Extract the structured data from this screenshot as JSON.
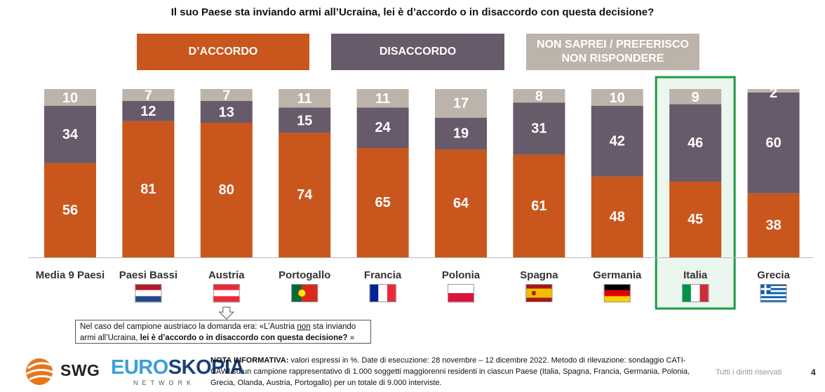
{
  "chart_data": {
    "type": "bar",
    "stacked": true,
    "title": "Il suo Paese sta inviando armi all’Ucraina, lei è d’accordo o in disaccordo con questa decisione?",
    "categories": [
      "Media 9 Paesi",
      "Paesi Bassi",
      "Austria",
      "Portogallo",
      "Francia",
      "Polonia",
      "Spagna",
      "Germania",
      "Italia",
      "Grecia"
    ],
    "series": [
      {
        "name": "D’ACCORDO",
        "color": "#c9561c",
        "values": [
          56,
          81,
          80,
          74,
          65,
          64,
          61,
          48,
          45,
          38
        ]
      },
      {
        "name": "DISACCORDO",
        "color": "#675a6a",
        "values": [
          34,
          12,
          13,
          15,
          24,
          19,
          31,
          42,
          46,
          60
        ]
      },
      {
        "name": "NON SAPREI / PREFERISCO NON RISPONDERE",
        "color": "#bcb3aa",
        "values": [
          10,
          7,
          7,
          11,
          11,
          17,
          8,
          10,
          9,
          2
        ]
      }
    ],
    "ylim": [
      0,
      100
    ],
    "highlight": "Italia",
    "grid": false,
    "legend": "top"
  },
  "legend_labels": {
    "agree": "D’ACCORDO",
    "disagree": "DISACCORDO",
    "no_answer_line1": "NON SAPREI / PREFERISCO",
    "no_answer_line2": "NON RISPONDERE"
  },
  "flag_icons": [
    "flag-netherlands-icon",
    "flag-austria-icon",
    "flag-portugal-icon",
    "flag-france-icon",
    "flag-poland-icon",
    "flag-spain-icon",
    "flag-germany-icon",
    "flag-italy-icon",
    "flag-greece-icon"
  ],
  "note": {
    "line1": "Nel caso del campione austriaco la domanda era: «L’Austria ",
    "underlined": "non",
    "line1_end": " sta inviando",
    "line2_start": "armi all’Ucraina, ",
    "line2_bold": "lei è d’accordo o in disaccordo con questa decisione?",
    "line2_end": " »"
  },
  "footnote": {
    "label": "NOTA INFORMATIVA:",
    "text": " valori espressi in %. Date di esecuzione: 28 novembre – 12 dicembre 2022. Metodo di rilevazione: sondaggio CATI-CAWI su un campione rappresentativo di 1.000 soggetti maggiorenni residenti in ciascun Paese (Italia, Spagna, Francia, Germania, Polonia, Grecia, Olanda, Austria, Portogallo) per un totale di 9.000 interviste."
  },
  "brand": {
    "swg": "SWG",
    "euro_a": "EURO",
    "euro_b": "SKOPIA",
    "network": "NETWORK"
  },
  "rights": "Tutti i diritti riservati",
  "page_number": "4"
}
